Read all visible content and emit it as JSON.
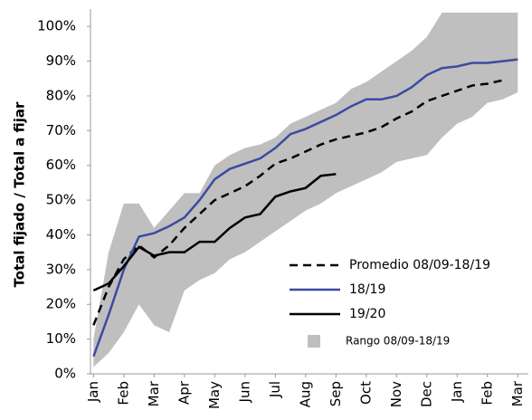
{
  "chart_data": {
    "type": "line",
    "y_label": "Total fijado / Total a fijar",
    "x": [
      0,
      0.5,
      1,
      1.5,
      2,
      2.5,
      3,
      3.5,
      4,
      4.5,
      5,
      5.5,
      6,
      6.5,
      7,
      7.5,
      8,
      8.5,
      9,
      9.5,
      10,
      10.5,
      11,
      11.5,
      12,
      12.5,
      13,
      13.5,
      14
    ],
    "xlim": [
      -0.1,
      14.35
    ],
    "xticks": [
      {
        "value": 0,
        "label": "Jan"
      },
      {
        "value": 1,
        "label": "Feb"
      },
      {
        "value": 2,
        "label": "Mar"
      },
      {
        "value": 3,
        "label": "Apr"
      },
      {
        "value": 4,
        "label": "May"
      },
      {
        "value": 5,
        "label": "Jun"
      },
      {
        "value": 6,
        "label": "Jul"
      },
      {
        "value": 7,
        "label": "Aug"
      },
      {
        "value": 8,
        "label": "Sep"
      },
      {
        "value": 9,
        "label": "Oct"
      },
      {
        "value": 10,
        "label": "Nov"
      },
      {
        "value": 11,
        "label": "Dec"
      },
      {
        "value": 12,
        "label": "Jan"
      },
      {
        "value": 13,
        "label": "Feb"
      },
      {
        "value": 14,
        "label": "Mar"
      }
    ],
    "ylim": [
      0,
      105
    ],
    "yticks": [
      {
        "value": 0,
        "label": "0%"
      },
      {
        "value": 10,
        "label": "10%"
      },
      {
        "value": 20,
        "label": "20%"
      },
      {
        "value": 30,
        "label": "30%"
      },
      {
        "value": 40,
        "label": "40%"
      },
      {
        "value": 50,
        "label": "50%"
      },
      {
        "value": 60,
        "label": "60%"
      },
      {
        "value": 70,
        "label": "70%"
      },
      {
        "value": 80,
        "label": "80%"
      },
      {
        "value": 90,
        "label": "90%"
      },
      {
        "value": 100,
        "label": "100%"
      }
    ],
    "legend": "lower right",
    "series": [
      {
        "name": "Rango 08/09-18/19",
        "style": "band",
        "color": "#bfbfbf",
        "high": [
          10,
          35,
          49,
          49,
          42,
          47,
          52,
          52,
          60,
          63,
          65,
          66,
          68,
          72,
          74,
          76,
          78,
          82,
          84,
          87,
          90,
          93,
          97,
          104,
          104,
          104,
          104,
          104,
          104
        ],
        "low": [
          2,
          6,
          12,
          20,
          14,
          12,
          24,
          27,
          29,
          33,
          35,
          38,
          41,
          44,
          47,
          49,
          52,
          54,
          56,
          58,
          61,
          62,
          63,
          68,
          72,
          74,
          78,
          79,
          81
        ]
      },
      {
        "name": "Promedio 08/09-18/19",
        "style": "dashed",
        "color": "#000000",
        "values": [
          14,
          25,
          33,
          37,
          33.5,
          37,
          42,
          46,
          50,
          52,
          54,
          57,
          60.5,
          62,
          64,
          66,
          67.5,
          68.5,
          69.5,
          71,
          73.5,
          75.5,
          78.5,
          80,
          81.5,
          83,
          83.5,
          84.5,
          null
        ]
      },
      {
        "name": "18/19",
        "style": "solid",
        "color": "#3a4ba0",
        "values": [
          5,
          17,
          30,
          39.5,
          40.5,
          42.5,
          45,
          50,
          56,
          59,
          60.5,
          62,
          65,
          69,
          70.5,
          72.5,
          74.5,
          77,
          79,
          79,
          80,
          82.5,
          86,
          88,
          88.5,
          89.5,
          89.5,
          90,
          90.5
        ]
      },
      {
        "name": "19/20",
        "style": "solid",
        "color": "#000000",
        "values": [
          24,
          26,
          31,
          36.5,
          34,
          35,
          35,
          38,
          38,
          42,
          45,
          46,
          51,
          52.5,
          53.5,
          57,
          57.5,
          null,
          null,
          null,
          null,
          null,
          null,
          null,
          null,
          null,
          null,
          null,
          null
        ]
      }
    ]
  }
}
